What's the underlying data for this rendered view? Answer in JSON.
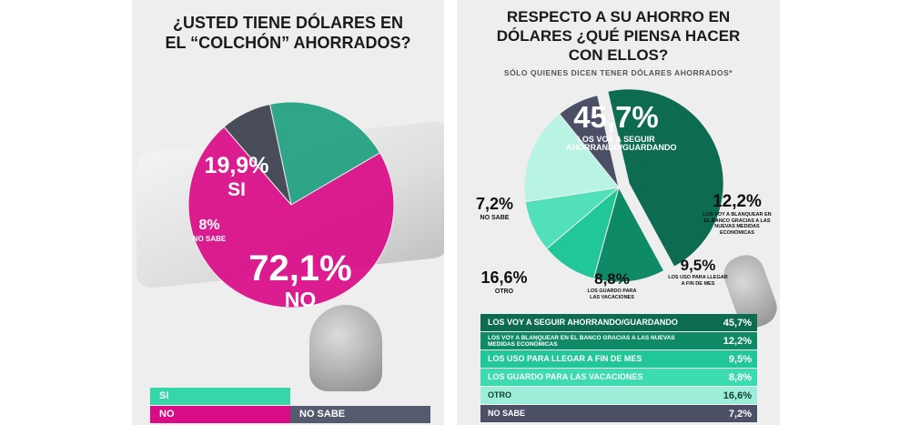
{
  "left": {
    "title_line1": "¿USTED TIENE DÓLARES EN",
    "title_line2": "EL “COLCHÓN” AHORRADOS?",
    "chart_data": {
      "type": "pie",
      "title": "¿USTED TIENE DÓLARES EN EL “COLCHÓN” AHORRADOS?",
      "slices": [
        {
          "label": "SI",
          "value": 19.9,
          "display": "19,9%",
          "color": "#1f9f80"
        },
        {
          "label": "NO",
          "value": 72.1,
          "display": "72,1%",
          "color": "#d90b87"
        },
        {
          "label": "NO SABE",
          "value": 8.0,
          "display": "8%",
          "color": "#3b3f4d"
        }
      ]
    },
    "legend": [
      {
        "label": "SI",
        "color": "#35d6a8"
      },
      {
        "label": "NO",
        "color": "#d90b87"
      },
      {
        "label": "NO SABE",
        "color": "#555b6e"
      }
    ]
  },
  "right": {
    "title_line1": "RESPECTO A SU AHORRO EN",
    "title_line2": "DÓLARES ¿QUÉ PIENSA HACER",
    "title_line3": "CON ELLOS?",
    "subtitle": "SÓLO QUIENES DICEN TENER DÓLARES AHORRADOS*",
    "chart_data": {
      "type": "pie",
      "title": "RESPECTO A SU AHORRO EN DÓLARES ¿QUÉ PIENSA HACER CON ELLOS?",
      "slices": [
        {
          "label": "LOS VOY A SEGUIR AHORRANDO/GUARDANDO",
          "value": 45.7,
          "display": "45,7%",
          "color": "#0d6b52"
        },
        {
          "label": "LOS VOY A BLANQUEAR EN EL BANCO GRACIAS A LAS NUEVAS MEDIDAS ECONÓMICAS",
          "value": 12.2,
          "display": "12,2%",
          "color": "#0f8a66"
        },
        {
          "label": "LOS USO PARA LLEGAR A FIN DE MES",
          "value": 9.5,
          "display": "9,5%",
          "color": "#21c796"
        },
        {
          "label": "LOS GUARDO PARA LAS VACACIONES",
          "value": 8.8,
          "display": "8,8%",
          "color": "#52e0bb"
        },
        {
          "label": "OTRO",
          "value": 16.6,
          "display": "16,6%",
          "color": "#b9f3e4"
        },
        {
          "label": "NO SABE",
          "value": 7.2,
          "display": "7,2%",
          "color": "#4b5066"
        }
      ]
    },
    "pie_labels": {
      "big_value": "45,7%",
      "big_caption": "LOS VOY A SEGUIR AHORRANDO/GUARDANDO",
      "v2": "12,2%",
      "c2": "LOS VOY A BLANQUEAR EN EL BANCO GRACIAS A LAS NUEVAS MEDIDAS ECONÓMICAS",
      "v3": "9,5%",
      "c3": "LOS USO PARA LLEGAR A FIN DE MES",
      "v4": "8,8%",
      "c4": "LOS GUARDO PARA LAS VACACIONES",
      "v5": "16,6%",
      "c5": "OTRO",
      "v6": "7,2%",
      "c6": "NO SABE"
    },
    "table": [
      {
        "label": "LOS VOY A SEGUIR AHORRANDO/GUARDANDO",
        "value": "45,7%",
        "color": "#0d6b52"
      },
      {
        "label": "LOS VOY A BLANQUEAR EN EL BANCO GRACIAS A LAS NUEVAS MEDIDAS ECONÓMICAS",
        "value": "12,2%",
        "color": "#0f8a66"
      },
      {
        "label": "LOS USO PARA LLEGAR A FIN DE MES",
        "value": "9,5%",
        "color": "#21c796"
      },
      {
        "label": "LOS GUARDO PARA LAS VACACIONES",
        "value": "8,8%",
        "color": "#3ddbb0"
      },
      {
        "label": "OTRO",
        "value": "16,6%",
        "color": "#9deed8"
      },
      {
        "label": "NO SABE",
        "value": "7,2%",
        "color": "#4b5066"
      }
    ]
  }
}
